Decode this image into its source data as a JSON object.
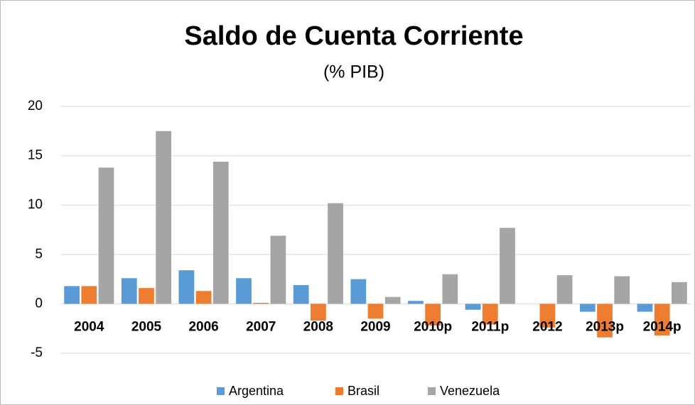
{
  "chart_data": {
    "type": "bar",
    "title": "Saldo de Cuenta Corriente",
    "subtitle": "(% PIB)",
    "categories": [
      "2004",
      "2005",
      "2006",
      "2007",
      "2008",
      "2009",
      "2010p",
      "2011p",
      "2012",
      "2013p",
      "2014p"
    ],
    "series": [
      {
        "name": "Argentina",
        "color": "#5b9bd5",
        "values": [
          1.8,
          2.6,
          3.4,
          2.6,
          1.9,
          2.5,
          0.3,
          -0.6,
          0,
          -0.8,
          -0.8
        ]
      },
      {
        "name": "Brasil",
        "color": "#ed7d31",
        "values": [
          1.8,
          1.6,
          1.3,
          0.1,
          -1.7,
          -1.5,
          -2.2,
          -2.1,
          -2.4,
          -3.4,
          -3.2
        ]
      },
      {
        "name": "Venezuela",
        "color": "#a5a5a5",
        "values": [
          13.8,
          17.5,
          14.4,
          6.9,
          10.2,
          0.7,
          3.0,
          7.7,
          2.9,
          2.8,
          2.2
        ]
      }
    ],
    "ylim": [
      -5,
      20
    ],
    "yticks": [
      -5,
      0,
      5,
      10,
      15,
      20
    ],
    "grid": true,
    "legend": "bottom"
  }
}
